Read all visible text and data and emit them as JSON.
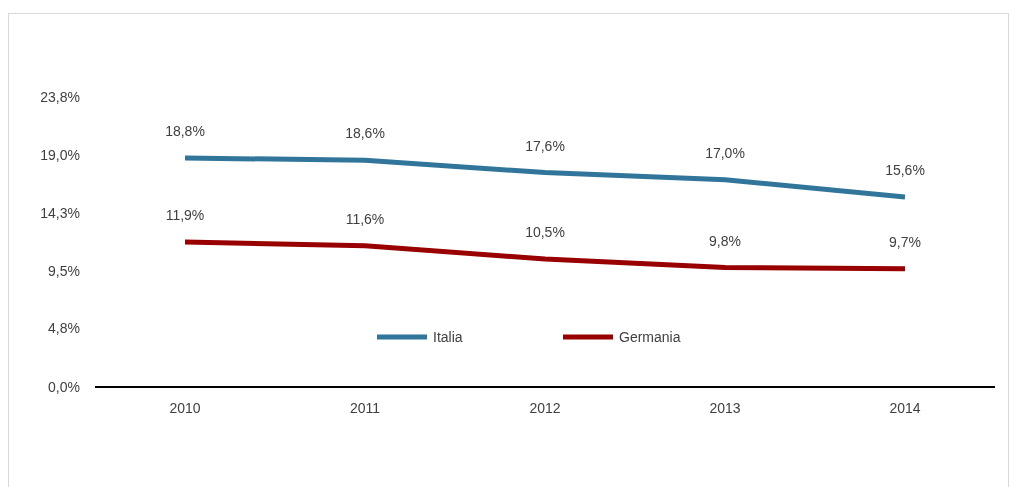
{
  "chart_data": {
    "type": "line",
    "categories": [
      "2010",
      "2011",
      "2012",
      "2013",
      "2014"
    ],
    "series": [
      {
        "name": "Italia",
        "color": "#31759b",
        "values": [
          18.8,
          18.6,
          17.6,
          17.0,
          15.6
        ],
        "value_labels": [
          "18,8%",
          "18,6%",
          "17,6%",
          "17,0%",
          "15,6%"
        ]
      },
      {
        "name": "Germania",
        "color": "#990000",
        "values": [
          11.9,
          11.6,
          10.5,
          9.8,
          9.7
        ],
        "value_labels": [
          "11,9%",
          "11,6%",
          "10,5%",
          "9,8%",
          "9,7%"
        ]
      }
    ],
    "ylim": [
      0,
      23.8
    ],
    "yticks": [
      {
        "value": 0,
        "label": "0,0%"
      },
      {
        "value": 4.8,
        "label": "4,8%"
      },
      {
        "value": 9.5,
        "label": "9,5%"
      },
      {
        "value": 14.3,
        "label": "14,3%"
      },
      {
        "value": 19.0,
        "label": "19,0%"
      },
      {
        "value": 23.8,
        "label": "23,8%"
      }
    ],
    "grid": false,
    "legend": "bottom",
    "marker": "none",
    "line_style": "solid"
  }
}
